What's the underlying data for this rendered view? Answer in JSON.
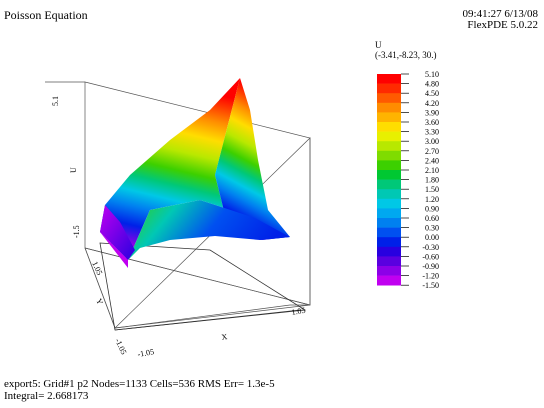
{
  "header": {
    "title": "Poisson Equation",
    "time": "09:41:27 6/13/08",
    "version": "FlexPDE 5.0.22"
  },
  "legend": {
    "variable": "U",
    "viewpoint": "(-3.41,-8.23, 30.)",
    "levels": [
      "5.10",
      "4.80",
      "4.50",
      "4.20",
      "3.90",
      "3.60",
      "3.30",
      "3.00",
      "2.70",
      "2.40",
      "2.10",
      "1.80",
      "1.50",
      "1.20",
      "0.90",
      "0.60",
      "0.30",
      "0.00",
      "-0.30",
      "-0.60",
      "-0.90",
      "-1.20",
      "-1.50"
    ],
    "colors": [
      "#ff0000",
      "#ff2a00",
      "#ff5a00",
      "#ff8c00",
      "#ffb400",
      "#ffdd00",
      "#e8f000",
      "#b8e800",
      "#7fdc00",
      "#3cd000",
      "#00c832",
      "#00c878",
      "#00c8b4",
      "#00c8e6",
      "#00a8f0",
      "#0080f0",
      "#0050f0",
      "#0020e8",
      "#2800e0",
      "#5a00e0",
      "#8c00e8",
      "#c000f0",
      "#f000f0"
    ]
  },
  "axes": {
    "u_label": "U",
    "x_label": "X",
    "y_label": "Y",
    "u_ticks": [
      "5.1",
      "-1.5"
    ],
    "y_ticks": [
      "1.05",
      "-1.05"
    ],
    "x_ticks": [
      "-1.05",
      "1.05"
    ]
  },
  "footer": {
    "line1": "export5:  Grid#1  p2  Nodes=1133 Cells=536 RMS Err= 1.3e-5",
    "line2": "Integral=  2.668173"
  }
}
